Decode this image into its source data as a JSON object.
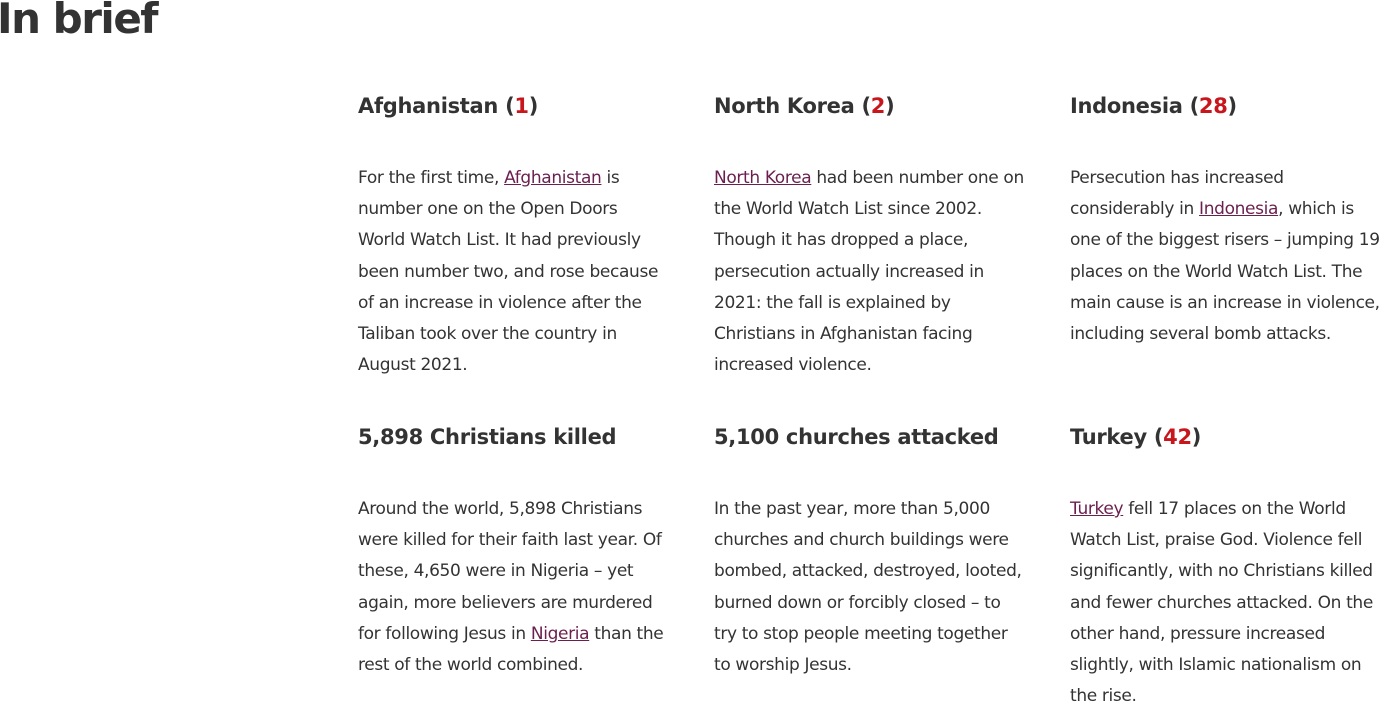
{
  "page": {
    "heading": "In brief"
  },
  "cards": [
    {
      "title": "Afghanistan",
      "rank": "1",
      "pre": "For the first time, ",
      "link": "Afghanistan",
      "post": " is number one on the Open Doors World Watch List. It had previously been number two, and rose because of an increase in violence after the Taliban took over the country in August 2021."
    },
    {
      "title": "North Korea",
      "rank": "2",
      "pre": "",
      "link": "North Korea",
      "post": " had been number one on the World Watch List since 2002. Though it has dropped a place, persecution actually increased in 2021: the fall is explained by Christians in Afghanistan facing increased violence."
    },
    {
      "title": "Indonesia",
      "rank": "28",
      "pre": "Persecution has increased considerably in ",
      "link": "Indonesia",
      "post": ", which is one of the biggest risers – jumping 19 places on the World Watch List. The main cause is an increase in violence, including several bomb attacks."
    },
    {
      "title": "5,898 Christians killed",
      "pre": "Around the world, 5,898 Christians were killed for their faith last year. Of these, 4,650 were in Nigeria – yet again, more believers are murdered for following Jesus in ",
      "link": "Nigeria",
      "post": " than the rest of the world combined."
    },
    {
      "title": "5,100 churches attacked",
      "text": "In the past year, more than 5,000 churches and church buildings were bombed, attacked, destroyed, looted, burned down or forcibly closed – to try to stop people meeting together to worship Jesus."
    },
    {
      "title": "Turkey",
      "rank": "42",
      "pre": "",
      "link": "Turkey",
      "post": " fell 17 places on the World Watch List, praise God. Violence fell significantly, with no Christians killed and fewer churches attacked. On the other hand, pressure increased slightly, with Islamic nationalism on the rise."
    }
  ],
  "colors": {
    "heading": "#333333",
    "rank": "#c8161d",
    "link": "#6b1f4e"
  }
}
